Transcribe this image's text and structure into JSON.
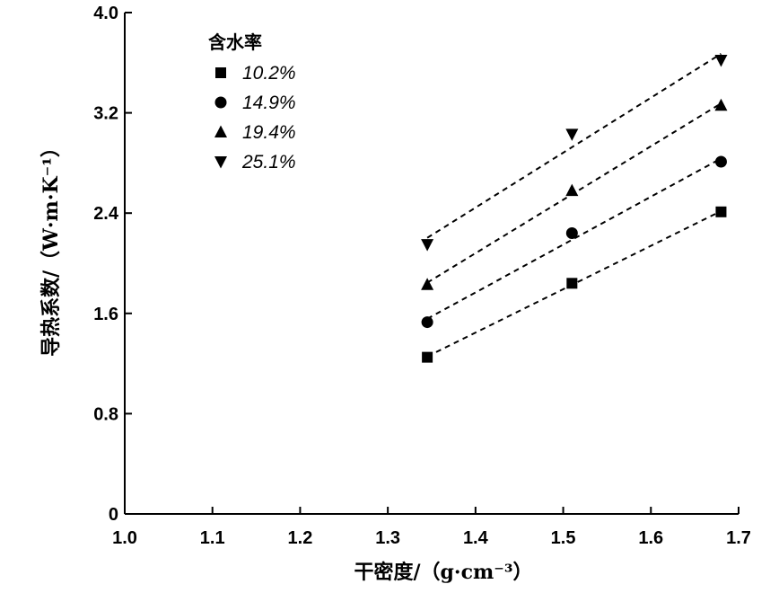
{
  "chart_data": {
    "type": "scatter",
    "xlabel": "干密度/（g·cm⁻³）",
    "ylabel": "导热系数/（W·m·K⁻¹）",
    "xlim": [
      1.0,
      1.7
    ],
    "ylim": [
      0,
      4.0
    ],
    "xticks": [
      "1.0",
      "1.1",
      "1.2",
      "1.3",
      "1.4",
      "1.5",
      "1.6",
      "1.7"
    ],
    "yticks": [
      "0",
      "0.8",
      "1.6",
      "2.4",
      "3.2",
      "4.0"
    ],
    "grid": false,
    "legend": {
      "title": "含水率",
      "position": "top-left"
    },
    "x": [
      1.345,
      1.51,
      1.68
    ],
    "series": [
      {
        "name": "10.2%",
        "marker": "square",
        "values": [
          1.25,
          1.84,
          2.41
        ],
        "fit": "linear"
      },
      {
        "name": "14.9%",
        "marker": "circle",
        "values": [
          1.53,
          2.24,
          2.81
        ],
        "fit": "linear"
      },
      {
        "name": "19.4%",
        "marker": "triangle-up",
        "values": [
          1.83,
          2.58,
          3.26
        ],
        "fit": "linear"
      },
      {
        "name": "25.1%",
        "marker": "triangle-down",
        "values": [
          2.15,
          3.03,
          3.62
        ],
        "fit": "linear"
      }
    ]
  }
}
